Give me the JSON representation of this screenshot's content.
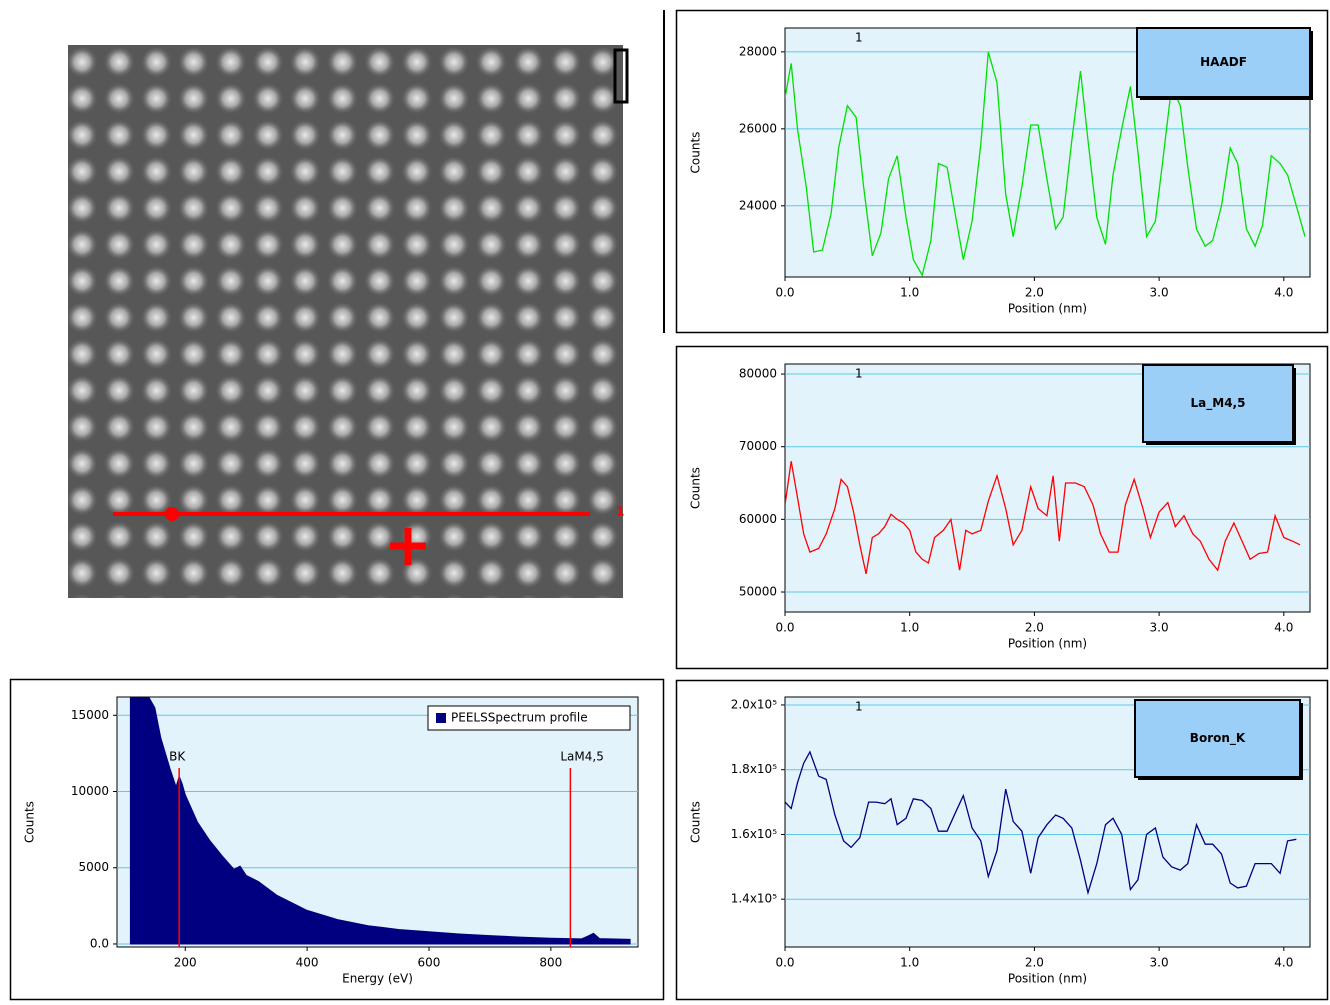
{
  "image": {
    "line_label": "1"
  },
  "chart_data": [
    {
      "type": "line",
      "title": "HAADF",
      "marker_label": "1",
      "xlabel": "Position (nm)",
      "ylabel": "Counts",
      "x": [
        0,
        0.05,
        0.1,
        0.17,
        0.23,
        0.3,
        0.37,
        0.43,
        0.5,
        0.57,
        0.63,
        0.7,
        0.77,
        0.83,
        0.9,
        0.97,
        1.03,
        1.1,
        1.17,
        1.23,
        1.3,
        1.37,
        1.43,
        1.5,
        1.57,
        1.63,
        1.7,
        1.77,
        1.83,
        1.9,
        1.97,
        2.03,
        2.1,
        2.17,
        2.23,
        2.3,
        2.37,
        2.43,
        2.5,
        2.57,
        2.63,
        2.7,
        2.77,
        2.83,
        2.9,
        2.97,
        3.03,
        3.1,
        3.17,
        3.23,
        3.3,
        3.37,
        3.43,
        3.5,
        3.57,
        3.63,
        3.7,
        3.77,
        3.83,
        3.9,
        3.97,
        4.03,
        4.1,
        4.17
      ],
      "series": [
        {
          "color": "#00e000",
          "values": [
            26800,
            27700,
            26000,
            24500,
            22800,
            22850,
            23800,
            25500,
            26600,
            26300,
            24500,
            22700,
            23300,
            24700,
            25300,
            23700,
            22600,
            22200,
            23100,
            25100,
            25000,
            23700,
            22600,
            23600,
            25600,
            28000,
            27200,
            24300,
            23200,
            24500,
            26100,
            26100,
            24700,
            23400,
            23700,
            25700,
            27500,
            25700,
            23700,
            23000,
            24800,
            26000,
            27100,
            25400,
            23200,
            23600,
            25200,
            27100,
            26600,
            25000,
            23400,
            22950,
            23100,
            24000,
            25500,
            25100,
            23400,
            22950,
            23500,
            25300,
            25100,
            24800,
            24000,
            23200
          ]
        }
      ],
      "xlim": [
        0,
        4.21
      ],
      "ylim": [
        22150,
        28620
      ],
      "xticks": [
        {
          "value": 0,
          "label": "0.0"
        },
        {
          "value": 1,
          "label": "1.0"
        },
        {
          "value": 2,
          "label": "2.0"
        },
        {
          "value": 3,
          "label": "3.0"
        },
        {
          "value": 4,
          "label": "4.0"
        }
      ],
      "yticks": [
        24000,
        26000,
        28000
      ],
      "grid": true
    },
    {
      "type": "line",
      "title": "La_M4,5",
      "marker_label": "1",
      "xlabel": "Position (nm)",
      "ylabel": "Counts",
      "x": [
        0,
        0.05,
        0.1,
        0.15,
        0.2,
        0.27,
        0.33,
        0.4,
        0.45,
        0.5,
        0.55,
        0.6,
        0.65,
        0.7,
        0.75,
        0.8,
        0.85,
        0.9,
        0.95,
        1.0,
        1.05,
        1.1,
        1.15,
        1.2,
        1.27,
        1.33,
        1.4,
        1.45,
        1.5,
        1.57,
        1.63,
        1.7,
        1.77,
        1.83,
        1.9,
        1.97,
        2.03,
        2.1,
        2.15,
        2.2,
        2.25,
        2.33,
        2.4,
        2.47,
        2.53,
        2.6,
        2.67,
        2.73,
        2.8,
        2.87,
        2.93,
        3.0,
        3.07,
        3.13,
        3.2,
        3.27,
        3.33,
        3.4,
        3.47,
        3.53,
        3.6,
        3.67,
        3.73,
        3.8,
        3.87,
        3.93,
        4.0,
        4.07,
        4.13
      ],
      "series": [
        {
          "color": "#ff0000",
          "values": [
            62000,
            68000,
            63000,
            58000,
            55500,
            56000,
            58000,
            61500,
            65500,
            64500,
            61000,
            56500,
            52500,
            57500,
            58000,
            59000,
            60700,
            60000,
            59500,
            58500,
            55500,
            54500,
            54000,
            57500,
            58500,
            60000,
            53000,
            58500,
            58000,
            58500,
            62500,
            66000,
            61500,
            56500,
            58500,
            64500,
            61500,
            60500,
            66000,
            57000,
            65000,
            65000,
            64500,
            62000,
            58000,
            55500,
            55500,
            62000,
            65500,
            61500,
            57500,
            61000,
            62300,
            59000,
            60500,
            58000,
            57000,
            54500,
            53000,
            57000,
            59500,
            56800,
            54500,
            55300,
            55500,
            60500,
            57500,
            57000,
            56500
          ]
        }
      ],
      "xlim": [
        0,
        4.21
      ],
      "ylim": [
        47250,
        81380
      ],
      "xticks": [
        {
          "value": 0,
          "label": "0.0"
        },
        {
          "value": 1,
          "label": "1.0"
        },
        {
          "value": 2,
          "label": "2.0"
        },
        {
          "value": 3,
          "label": "3.0"
        },
        {
          "value": 4,
          "label": "4.0"
        }
      ],
      "yticks": [
        50000,
        60000,
        70000,
        80000
      ],
      "grid": true
    },
    {
      "type": "line",
      "title": "Boron_K",
      "marker_label": "1",
      "xlabel": "Position (nm)",
      "ylabel": "Counts",
      "x": [
        0,
        0.05,
        0.1,
        0.15,
        0.2,
        0.27,
        0.33,
        0.4,
        0.47,
        0.53,
        0.6,
        0.67,
        0.73,
        0.8,
        0.85,
        0.9,
        0.97,
        1.03,
        1.1,
        1.17,
        1.23,
        1.3,
        1.37,
        1.43,
        1.5,
        1.57,
        1.63,
        1.7,
        1.77,
        1.83,
        1.9,
        1.97,
        2.03,
        2.1,
        2.17,
        2.23,
        2.3,
        2.37,
        2.43,
        2.5,
        2.57,
        2.63,
        2.7,
        2.77,
        2.83,
        2.9,
        2.97,
        3.03,
        3.1,
        3.17,
        3.23,
        3.3,
        3.37,
        3.43,
        3.5,
        3.57,
        3.63,
        3.7,
        3.77,
        3.83,
        3.9,
        3.97,
        4.03,
        4.1
      ],
      "series": [
        {
          "color": "#000080",
          "values": [
            170000,
            168000,
            176000,
            182000,
            185500,
            178000,
            177000,
            166000,
            158000,
            156000,
            159000,
            170000,
            170000,
            169500,
            171000,
            163000,
            165000,
            171000,
            170500,
            168000,
            161000,
            161000,
            167000,
            172000,
            162000,
            158000,
            147000,
            155000,
            174000,
            164000,
            161000,
            148000,
            159000,
            163000,
            166000,
            165000,
            162000,
            152000,
            142000,
            151000,
            163000,
            165000,
            160000,
            143000,
            146000,
            160000,
            162000,
            153000,
            150000,
            149000,
            151000,
            163000,
            157000,
            157000,
            154000,
            145000,
            143500,
            144000,
            151000,
            151000,
            151000,
            148000,
            158000,
            158500
          ]
        }
      ],
      "xlim": [
        0,
        4.21
      ],
      "ylim": [
        125230,
        202460
      ],
      "xticks": [
        {
          "value": 0,
          "label": "0.0"
        },
        {
          "value": 1,
          "label": "1.0"
        },
        {
          "value": 2,
          "label": "2.0"
        },
        {
          "value": 3,
          "label": "3.0"
        },
        {
          "value": 4,
          "label": "4.0"
        }
      ],
      "yticks": [
        {
          "value": 140000,
          "label": "1.4x10⁵"
        },
        {
          "value": 160000,
          "label": "1.6x10⁵"
        },
        {
          "value": 180000,
          "label": "1.8x10⁵"
        },
        {
          "value": 200000,
          "label": "2.0x10⁵"
        }
      ],
      "grid": true
    },
    {
      "type": "area",
      "xlabel": "Energy (eV)",
      "ylabel": "Counts",
      "x": [
        110,
        140,
        150,
        160,
        175,
        185,
        190,
        195,
        200,
        220,
        240,
        260,
        280,
        290,
        300,
        320,
        350,
        400,
        450,
        500,
        550,
        600,
        650,
        700,
        750,
        800,
        850,
        860,
        870,
        880,
        930
      ],
      "series": [
        {
          "name": "PEELSSpectrum profile",
          "color": "#000080",
          "values": [
            16200,
            16200,
            15500,
            13500,
            11500,
            10300,
            11000,
            10500,
            9800,
            8000,
            6800,
            5800,
            4900,
            5100,
            4500,
            4100,
            3200,
            2200,
            1600,
            1200,
            950,
            800,
            650,
            550,
            450,
            380,
            330,
            500,
            700,
            350,
            300
          ]
        }
      ],
      "annotations": [
        {
          "label": "BK",
          "x": 190
        },
        {
          "label": "LaM4,5",
          "x": 832
        }
      ],
      "xlim": [
        88,
        943
      ],
      "ylim": [
        -200,
        16200
      ],
      "xticks": [
        200,
        400,
        600,
        800
      ],
      "yticks": [
        {
          "value": 0,
          "label": "0.0"
        },
        5000,
        10000,
        15000
      ],
      "grid": true
    }
  ]
}
